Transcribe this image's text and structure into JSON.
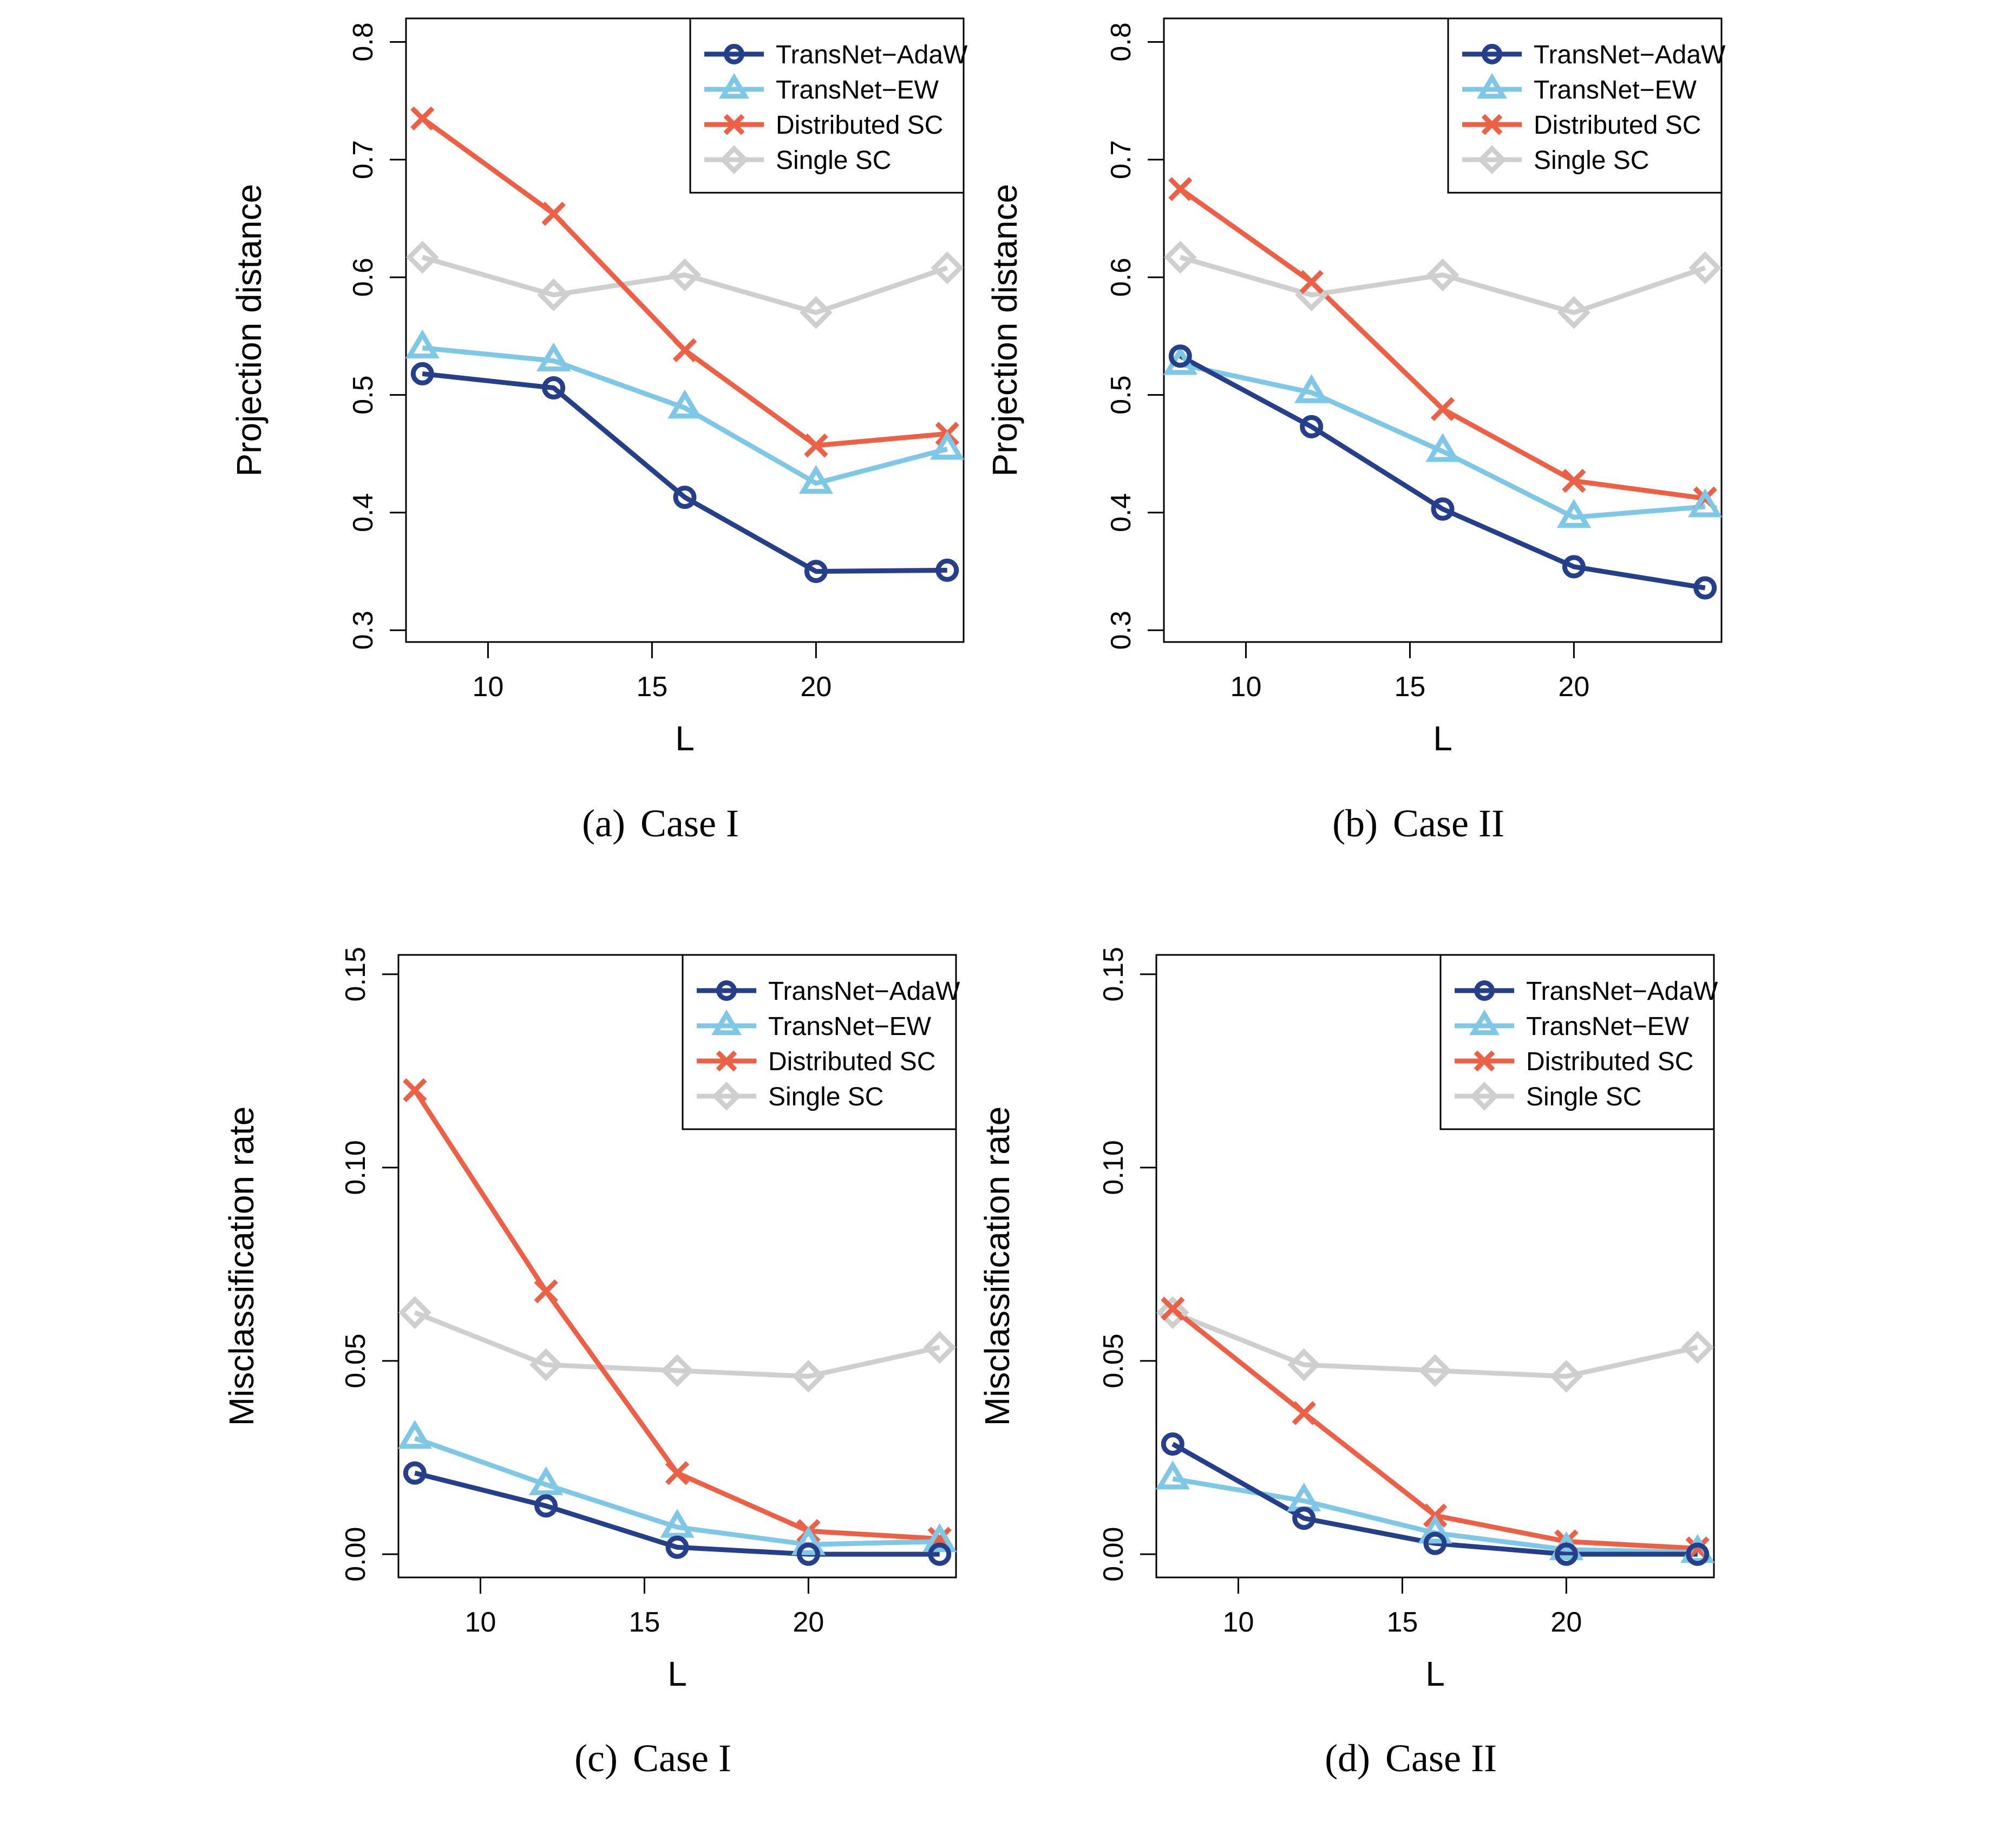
{
  "figure": {
    "series_styles": [
      {
        "name": "TransNet−AdaW",
        "color": "#253F8A",
        "marker": "circle"
      },
      {
        "name": "TransNet−EW",
        "color": "#7EC7E6",
        "marker": "triangle"
      },
      {
        "name": "Distributed SC",
        "color": "#EC6046",
        "marker": "cross"
      },
      {
        "name": "Single SC",
        "color": "#CFCFCF",
        "marker": "diamond"
      }
    ]
  },
  "chart_data": [
    {
      "id": "a",
      "type": "line",
      "caption_label": "(a)",
      "caption_text": "Case I",
      "xlabel": "L",
      "ylabel": "Projection distance",
      "x": [
        8,
        12,
        16,
        20,
        24
      ],
      "xlim": [
        7.5,
        24.5
      ],
      "ylim": [
        0.29,
        0.82
      ],
      "xticks": [
        10,
        15,
        20
      ],
      "yticks": [
        0.3,
        0.4,
        0.5,
        0.6,
        0.7,
        0.8
      ],
      "yticklabels": [
        "0.3",
        "0.4",
        "0.5",
        "0.6",
        "0.7",
        "0.8"
      ],
      "legend_position": "top-right",
      "series": [
        {
          "name": "TransNet−AdaW",
          "values": [
            0.518,
            0.506,
            0.413,
            0.35,
            0.351
          ]
        },
        {
          "name": "TransNet−EW",
          "values": [
            0.54,
            0.529,
            0.489,
            0.425,
            0.454
          ]
        },
        {
          "name": "Distributed SC",
          "values": [
            0.735,
            0.654,
            0.538,
            0.457,
            0.467
          ]
        },
        {
          "name": "Single SC",
          "values": [
            0.617,
            0.585,
            0.602,
            0.57,
            0.608
          ]
        }
      ]
    },
    {
      "id": "b",
      "type": "line",
      "caption_label": "(b)",
      "caption_text": "Case II",
      "xlabel": "L",
      "ylabel": "Projection distance",
      "x": [
        8,
        12,
        16,
        20,
        24
      ],
      "xlim": [
        7.5,
        24.5
      ],
      "ylim": [
        0.29,
        0.82
      ],
      "xticks": [
        10,
        15,
        20
      ],
      "yticks": [
        0.3,
        0.4,
        0.5,
        0.6,
        0.7,
        0.8
      ],
      "yticklabels": [
        "0.3",
        "0.4",
        "0.5",
        "0.6",
        "0.7",
        "0.8"
      ],
      "legend_position": "top-right",
      "series": [
        {
          "name": "TransNet−AdaW",
          "values": [
            0.533,
            0.473,
            0.403,
            0.354,
            0.336
          ]
        },
        {
          "name": "TransNet−EW",
          "values": [
            0.526,
            0.502,
            0.452,
            0.396,
            0.405
          ]
        },
        {
          "name": "Distributed SC",
          "values": [
            0.675,
            0.596,
            0.488,
            0.427,
            0.412
          ]
        },
        {
          "name": "Single SC",
          "values": [
            0.617,
            0.585,
            0.602,
            0.57,
            0.608
          ]
        }
      ]
    },
    {
      "id": "c",
      "type": "line",
      "caption_label": "(c)",
      "caption_text": "Case I",
      "xlabel": "L",
      "ylabel": "Misclassification rate",
      "x": [
        8,
        12,
        16,
        20,
        24
      ],
      "xlim": [
        7.5,
        24.5
      ],
      "ylim": [
        -0.006,
        0.155
      ],
      "xticks": [
        10,
        15,
        20
      ],
      "yticks": [
        0.0,
        0.05,
        0.1,
        0.15
      ],
      "yticklabels": [
        "0.00",
        "0.05",
        "0.10",
        "0.15"
      ],
      "legend_position": "top-right",
      "series": [
        {
          "name": "TransNet−AdaW",
          "values": [
            0.021,
            0.0125,
            0.0018,
            0.0,
            0.0
          ]
        },
        {
          "name": "TransNet−EW",
          "values": [
            0.03,
            0.018,
            0.007,
            0.0025,
            0.0033
          ]
        },
        {
          "name": "Distributed SC",
          "values": [
            0.12,
            0.068,
            0.021,
            0.006,
            0.004
          ]
        },
        {
          "name": "Single SC",
          "values": [
            0.0625,
            0.049,
            0.0475,
            0.046,
            0.0535
          ]
        }
      ]
    },
    {
      "id": "d",
      "type": "line",
      "caption_label": "(d)",
      "caption_text": "Case II",
      "xlabel": "L",
      "ylabel": "Misclassification rate",
      "x": [
        8,
        12,
        16,
        20,
        24
      ],
      "xlim": [
        7.5,
        24.5
      ],
      "ylim": [
        -0.006,
        0.155
      ],
      "xticks": [
        10,
        15,
        20
      ],
      "yticks": [
        0.0,
        0.05,
        0.1,
        0.15
      ],
      "yticklabels": [
        "0.00",
        "0.05",
        "0.10",
        "0.15"
      ],
      "legend_position": "top-right",
      "series": [
        {
          "name": "TransNet−AdaW",
          "values": [
            0.0285,
            0.0093,
            0.0028,
            0.0,
            0.0
          ]
        },
        {
          "name": "TransNet−EW",
          "values": [
            0.0195,
            0.0138,
            0.0055,
            0.0012,
            0.0005
          ]
        },
        {
          "name": "Distributed SC",
          "values": [
            0.0635,
            0.0365,
            0.01,
            0.0033,
            0.0015
          ]
        },
        {
          "name": "Single SC",
          "values": [
            0.0625,
            0.049,
            0.0475,
            0.046,
            0.0535
          ]
        }
      ]
    }
  ]
}
